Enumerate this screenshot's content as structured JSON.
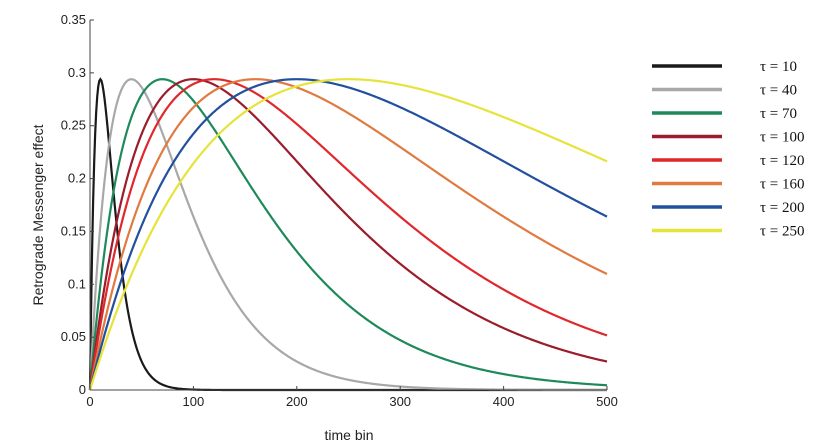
{
  "chart_data": {
    "type": "line",
    "xlabel": "time bin",
    "ylabel": "Retrograde Messenger effect",
    "xlim": [
      0,
      500
    ],
    "ylim": [
      0,
      0.35
    ],
    "xticks": [
      0,
      100,
      200,
      300,
      400,
      500
    ],
    "yticks": [
      0,
      0.05,
      0.1,
      0.15,
      0.2,
      0.25,
      0.3,
      0.35
    ],
    "grid": false,
    "legend_position": "right",
    "series": [
      {
        "name": "τ = 10",
        "tau": 10,
        "color": "#1a1a1a"
      },
      {
        "name": "τ = 40",
        "tau": 40,
        "color": "#a8a8a8"
      },
      {
        "name": "τ = 70",
        "tau": 70,
        "color": "#1e8a5a"
      },
      {
        "name": "τ = 100",
        "tau": 100,
        "color": "#9b1c2a"
      },
      {
        "name": "τ = 120",
        "tau": 120,
        "color": "#e0282c"
      },
      {
        "name": "τ = 160",
        "tau": 160,
        "color": "#e07a40"
      },
      {
        "name": "τ = 200",
        "tau": 200,
        "color": "#23509e"
      },
      {
        "name": "τ = 250",
        "tau": 250,
        "color": "#e6e33a"
      }
    ],
    "peak_value": 0.294
  }
}
